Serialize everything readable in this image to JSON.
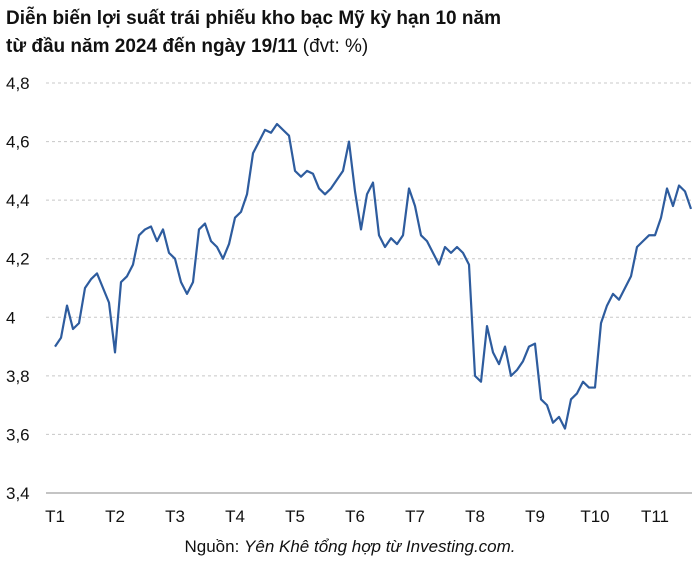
{
  "chart_data": {
    "type": "line",
    "title": "Diễn biến lợi suất trái phiếu kho bạc Mỹ kỳ hạn 10 năm",
    "subtitle": "từ đầu năm 2024 đến ngày 19/11",
    "unit": "(đvt: %)",
    "source": {
      "label": "Nguồn:",
      "text": "Yên Khê tổng hợp từ Investing.com."
    },
    "categories": [
      "T1",
      null,
      null,
      null,
      null,
      null,
      null,
      null,
      null,
      null,
      "T2",
      null,
      null,
      null,
      null,
      null,
      null,
      null,
      null,
      null,
      "T3",
      null,
      null,
      null,
      null,
      null,
      null,
      null,
      null,
      null,
      "T4",
      null,
      null,
      null,
      null,
      null,
      null,
      null,
      null,
      null,
      "T5",
      null,
      null,
      null,
      null,
      null,
      null,
      null,
      null,
      null,
      "T6",
      null,
      null,
      null,
      null,
      null,
      null,
      null,
      null,
      null,
      "T7",
      null,
      null,
      null,
      null,
      null,
      null,
      null,
      null,
      null,
      "T8",
      null,
      null,
      null,
      null,
      null,
      null,
      null,
      null,
      null,
      "T9",
      null,
      null,
      null,
      null,
      null,
      null,
      null,
      null,
      null,
      "T10",
      null,
      null,
      null,
      null,
      null,
      null,
      null,
      null,
      null,
      "T11",
      null,
      null,
      null,
      null,
      null,
      null
    ],
    "series": [
      {
        "color": "#2e5c9e",
        "values": [
          3.9,
          3.93,
          4.04,
          3.96,
          3.98,
          4.1,
          4.13,
          4.15,
          4.1,
          4.05,
          3.88,
          4.12,
          4.14,
          4.18,
          4.28,
          4.3,
          4.31,
          4.26,
          4.3,
          4.22,
          4.2,
          4.12,
          4.08,
          4.12,
          4.3,
          4.32,
          4.26,
          4.24,
          4.2,
          4.25,
          4.34,
          4.36,
          4.42,
          4.56,
          4.6,
          4.64,
          4.63,
          4.66,
          4.64,
          4.62,
          4.5,
          4.48,
          4.5,
          4.49,
          4.44,
          4.42,
          4.44,
          4.47,
          4.5,
          4.6,
          4.43,
          4.3,
          4.42,
          4.46,
          4.28,
          4.24,
          4.27,
          4.25,
          4.28,
          4.44,
          4.38,
          4.28,
          4.26,
          4.22,
          4.18,
          4.24,
          4.22,
          4.24,
          4.22,
          4.18,
          3.8,
          3.78,
          3.97,
          3.88,
          3.84,
          3.9,
          3.8,
          3.82,
          3.85,
          3.9,
          3.91,
          3.72,
          3.7,
          3.64,
          3.66,
          3.62,
          3.72,
          3.74,
          3.78,
          3.76,
          3.76,
          3.98,
          4.04,
          4.08,
          4.06,
          4.1,
          4.14,
          4.24,
          4.26,
          4.28,
          4.28,
          4.34,
          4.44,
          4.38,
          4.45,
          4.43,
          4.37
        ]
      }
    ],
    "ylim": [
      3.4,
      4.8
    ],
    "yticks": [
      {
        "value": 3.4,
        "label": "3,4"
      },
      {
        "value": 3.6,
        "label": "3,6"
      },
      {
        "value": 3.8,
        "label": "3,8"
      },
      4,
      {
        "value": 4.2,
        "label": "4,2"
      },
      {
        "value": 4.4,
        "label": "4,4"
      },
      {
        "value": 4.6,
        "label": "4,6"
      },
      {
        "value": 4.8,
        "label": "4,8"
      }
    ],
    "grid": true
  }
}
